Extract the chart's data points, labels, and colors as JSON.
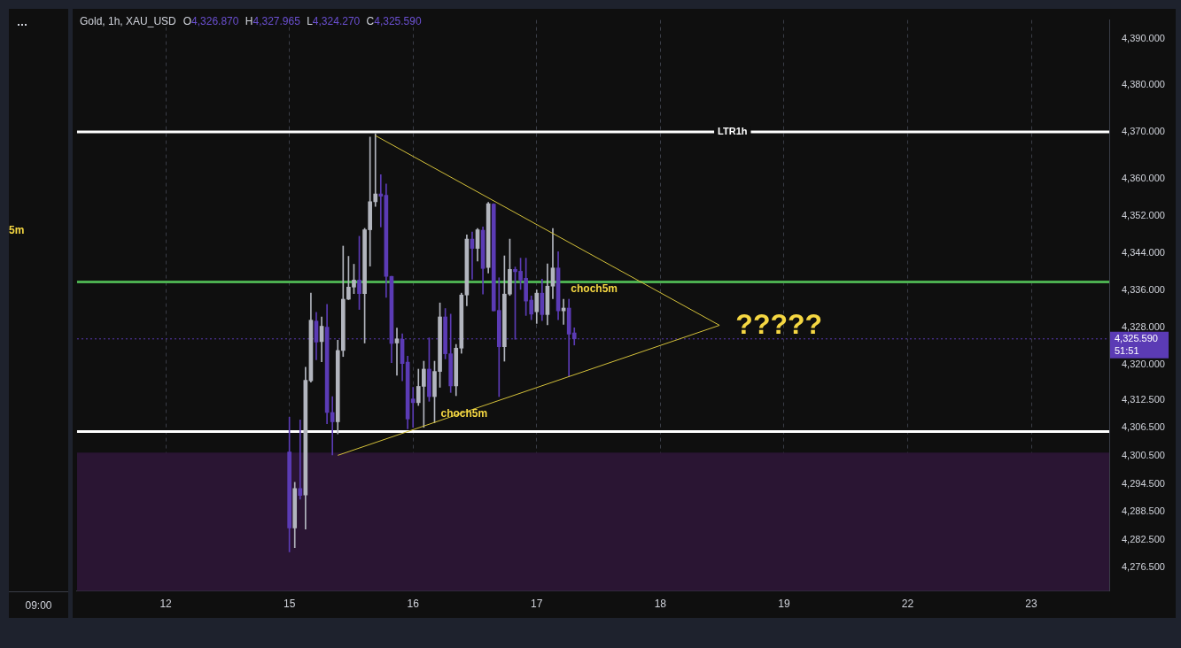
{
  "chart_data": [
    {
      "type": "other",
      "annotations": [
        "5m"
      ],
      "categories": [
        "09:00"
      ]
    },
    {
      "type": "candlestick",
      "title": "Gold, 1h, XAU_USD",
      "subtitle": "O4,326.870 H4,327.965 L4,324.270 C4,325.590",
      "categories": [
        null,
        null,
        null,
        null,
        null,
        null,
        null,
        null,
        null,
        null,
        null,
        null,
        null,
        null,
        null,
        null,
        "12",
        null,
        null,
        null,
        null,
        null,
        null,
        null,
        null,
        null,
        null,
        null,
        null,
        null,
        null,
        null,
        null,
        null,
        null,
        null,
        null,
        null,
        null,
        "15",
        null,
        null,
        null,
        null,
        null,
        null,
        null,
        null,
        null,
        null,
        null,
        null,
        null,
        null,
        null,
        null,
        null,
        null,
        null,
        null,
        null,
        null,
        "16",
        null,
        null,
        null,
        null,
        null,
        null,
        null,
        null,
        null,
        null,
        null,
        null,
        null,
        null,
        null,
        null,
        null,
        null,
        null,
        null,
        null,
        null,
        "17",
        null,
        null,
        null,
        null,
        null,
        null,
        null,
        null,
        null,
        null,
        null,
        null,
        null,
        null,
        null,
        null,
        null,
        null,
        null,
        null,
        null,
        null,
        "18",
        null,
        null,
        null,
        null,
        null,
        null,
        null,
        null,
        null,
        null,
        null,
        null,
        null,
        null,
        null,
        null,
        null,
        null,
        null,
        null,
        null,
        null,
        "19",
        null,
        null,
        null,
        null,
        null,
        null,
        null,
        null,
        null,
        null,
        null,
        null,
        null,
        null,
        null,
        null,
        null,
        null,
        null,
        null,
        null,
        null,
        "22",
        null,
        null,
        null,
        null,
        null,
        null,
        null,
        null,
        null,
        null,
        null,
        null,
        null,
        null,
        null,
        null,
        null,
        null,
        null,
        null,
        null,
        null,
        "23",
        null,
        null,
        null,
        null,
        null,
        null,
        null,
        null,
        null,
        null,
        null,
        null,
        null,
        null
      ],
      "ohlc": [
        null,
        null,
        null,
        null,
        null,
        null,
        null,
        null,
        null,
        null,
        null,
        null,
        null,
        null,
        null,
        null,
        null,
        null,
        null,
        null,
        null,
        null,
        null,
        null,
        null,
        null,
        null,
        null,
        null,
        null,
        null,
        null,
        null,
        null,
        null,
        null,
        null,
        null,
        null,
        [
          4301.3,
          4308.8,
          4279.9,
          4285.0
        ],
        [
          4285.0,
          4294.8,
          4280.8,
          4293.5
        ],
        [
          4293.5,
          4308.2,
          4291.2,
          4292.0
        ],
        [
          4292.1,
          4319.5,
          4284.8,
          4316.7
        ],
        [
          4316.6,
          4335.4,
          4316.3,
          4329.6
        ],
        [
          4329.4,
          4331.3,
          4321.1,
          4324.9
        ],
        [
          4325.0,
          4330.3,
          4320.7,
          4328.3
        ],
        [
          4328.1,
          4333.0,
          4307.4,
          4309.8
        ],
        [
          4309.8,
          4313.2,
          4300.7,
          4307.8
        ],
        [
          4307.8,
          4325.3,
          4305.2,
          4323.1
        ],
        [
          4323.1,
          4345.5,
          4321.8,
          4334.1
        ],
        [
          4334.1,
          4343.3,
          4334.0,
          4336.7
        ],
        [
          4336.7,
          4341.6,
          4335.3,
          4338.2
        ],
        [
          4338.2,
          4347.6,
          4331.9,
          4335.3
        ],
        [
          4335.3,
          4349.3,
          4324.7,
          4349.0
        ],
        [
          4349.0,
          4368.9,
          4341.2,
          4355.0
        ],
        [
          4355.0,
          4369.6,
          4354.0,
          4356.7
        ],
        [
          4356.7,
          4360.8,
          4349.6,
          4356.2
        ],
        [
          4356.4,
          4358.8,
          4334.5,
          4339.0
        ],
        [
          4339.0,
          4339.0,
          4320.5,
          4324.6
        ],
        [
          4324.7,
          4327.9,
          4317.8,
          4325.6
        ],
        [
          4325.5,
          4326.7,
          4316.6,
          4320.3
        ],
        [
          4320.6,
          4321.9,
          4306.3,
          4308.4
        ],
        [
          4312.7,
          4315.2,
          4306.6,
          4311.9
        ],
        [
          4311.9,
          4319.1,
          4311.3,
          4315.4
        ],
        [
          4315.4,
          4320.8,
          4306.6,
          4319.1
        ],
        [
          4319.1,
          4325.8,
          4312.2,
          4313.2
        ],
        [
          4313.2,
          4320.8,
          4307.6,
          4318.6
        ],
        [
          4318.6,
          4333.3,
          4315.2,
          4330.3
        ],
        [
          4330.3,
          4332.1,
          4321.3,
          4322.4
        ],
        [
          4322.4,
          4330.9,
          4314.1,
          4315.5
        ],
        [
          4315.5,
          4324.4,
          4313.4,
          4323.6
        ],
        [
          4323.6,
          4335.4,
          4322.5,
          4335.0
        ],
        [
          4335.0,
          4347.9,
          4332.7,
          4347.0
        ],
        [
          4347.0,
          4348.5,
          4338.4,
          4345.0
        ],
        [
          4345.0,
          4349.3,
          4342.3,
          4349.0
        ],
        [
          4348.9,
          4349.6,
          4335.2,
          4340.7
        ],
        [
          4340.9,
          4354.9,
          4339.7,
          4354.6
        ],
        [
          4354.5,
          4354.6,
          4331.6,
          4331.6
        ],
        [
          4331.7,
          4338.7,
          4313.2,
          4323.9
        ],
        [
          4323.9,
          4343.4,
          4320.8,
          4335.2
        ],
        [
          4335.2,
          4347.0,
          4334.9,
          4340.5
        ],
        [
          4340.5,
          4341.0,
          4325.5,
          4340.0
        ],
        [
          4340.1,
          4342.9,
          4336.2,
          4338.2
        ],
        [
          4338.6,
          4342.9,
          4330.6,
          4333.7
        ],
        [
          4333.9,
          4334.8,
          4329.7,
          4330.9
        ],
        [
          4331.4,
          4336.1,
          4328.9,
          4335.4
        ],
        [
          4335.4,
          4338.4,
          4329.5,
          4330.8
        ],
        [
          4330.8,
          4341.7,
          4328.6,
          4336.9
        ],
        [
          4336.9,
          4349.3,
          4334.2,
          4340.8
        ],
        [
          4340.8,
          4344.3,
          4329.7,
          4331.6
        ],
        [
          4331.6,
          4334.1,
          4328.7,
          4332.2
        ],
        [
          4332.2,
          4334.1,
          4317.5,
          4326.6
        ],
        [
          4326.87,
          4327.965,
          4324.27,
          4325.59
        ],
        null,
        null,
        null,
        null,
        null,
        null,
        null,
        null,
        null,
        null,
        null,
        null,
        null,
        null,
        null,
        null,
        null,
        null,
        null,
        null,
        null,
        null,
        null,
        null,
        null,
        null,
        null,
        null,
        null,
        null,
        null,
        null,
        null,
        null,
        null,
        null,
        null,
        null,
        null,
        null,
        null,
        null,
        null,
        null,
        null,
        null,
        null,
        null,
        null,
        null,
        null,
        null,
        null,
        null,
        null,
        null,
        null,
        null,
        null,
        null,
        null,
        null,
        null,
        null,
        null,
        null,
        null,
        null,
        null,
        null,
        null,
        null,
        null,
        null,
        null,
        null,
        null,
        null,
        null,
        null,
        null,
        null,
        null,
        null,
        null,
        null,
        null,
        null,
        null,
        null,
        null,
        null,
        null,
        null,
        null,
        null,
        null,
        null,
        null
      ],
      "colors": [
        null,
        null,
        null,
        null,
        null,
        null,
        null,
        null,
        null,
        null,
        null,
        null,
        null,
        null,
        null,
        null,
        null,
        null,
        null,
        null,
        null,
        null,
        null,
        null,
        null,
        null,
        null,
        null,
        null,
        null,
        null,
        null,
        null,
        null,
        null,
        null,
        null,
        null,
        null,
        "#5b3bb5",
        "#b2b5be",
        "#5b3bb5",
        "#b2b5be",
        "#b2b5be",
        "#5b3bb5",
        "#b2b5be",
        "#5b3bb5",
        "#5b3bb5",
        "#b2b5be",
        "#b2b5be",
        "#b2b5be",
        "#b2b5be",
        "#5b3bb5",
        "#b2b5be",
        "#b2b5be",
        "#b2b5be",
        "#5b3bb5",
        "#5b3bb5",
        "#5b3bb5",
        "#b2b5be",
        "#5b3bb5",
        "#5b3bb5",
        "#5b3bb5",
        "#b2b5be",
        "#b2b5be",
        "#5b3bb5",
        "#b2b5be",
        "#b2b5be",
        "#5b3bb5",
        "#5b3bb5",
        "#b2b5be",
        "#b2b5be",
        "#b2b5be",
        "#5b3bb5",
        "#b2b5be",
        "#5b3bb5",
        "#b2b5be",
        "#5b3bb5",
        "#5b3bb5",
        "#b2b5be",
        "#b2b5be",
        "#5b3bb5",
        "#5b3bb5",
        "#5b3bb5",
        "#5b3bb5",
        "#b2b5be",
        "#5b3bb5",
        "#b2b5be",
        "#b2b5be",
        "#5b3bb5",
        "#b2b5be",
        "#5b3bb5",
        "#5b3bb5",
        null,
        null,
        null,
        null,
        null,
        null,
        null,
        null,
        null,
        null,
        null,
        null,
        null,
        null,
        null,
        null,
        null,
        null,
        null,
        null,
        null,
        null,
        null,
        null,
        null,
        null,
        null,
        null,
        null,
        null,
        null,
        null,
        null,
        null,
        null,
        null,
        null,
        null,
        null,
        null,
        null,
        null,
        null,
        null,
        null,
        null,
        null,
        null,
        null,
        null,
        null,
        null,
        null,
        null,
        null,
        null,
        null,
        null,
        null,
        null,
        null,
        null,
        null,
        null,
        null,
        null,
        null,
        null,
        null,
        null,
        null,
        null,
        null,
        null,
        null,
        null,
        null,
        null,
        null,
        null,
        null,
        null,
        null,
        null,
        null,
        null,
        null,
        null,
        null,
        null,
        null,
        null,
        null,
        null,
        null,
        null,
        null,
        null,
        null
      ],
      "series": [
        {
          "type": "line",
          "color": "#d4c13a",
          "values": [
            null,
            null,
            null,
            null,
            null,
            null,
            null,
            null,
            null,
            null,
            null,
            null,
            null,
            null,
            null,
            null,
            null,
            null,
            null,
            null,
            null,
            null,
            null,
            null,
            null,
            null,
            null,
            null,
            null,
            null,
            null,
            null,
            null,
            null,
            null,
            null,
            null,
            null,
            null,
            null,
            null,
            null,
            null,
            null,
            null,
            null,
            null,
            null,
            null,
            null,
            null,
            null,
            null,
            null,
            null,
            4369.2,
            null,
            null,
            null,
            null,
            null,
            null,
            null,
            null,
            null,
            null,
            null,
            null,
            null,
            null,
            null,
            null,
            null,
            null,
            null,
            null,
            null,
            null,
            null,
            null,
            null,
            null,
            null,
            null,
            null,
            null,
            null,
            null,
            null,
            null,
            null,
            null,
            null,
            null,
            null,
            null,
            null,
            null,
            null,
            null,
            null,
            null,
            null,
            null,
            null,
            null,
            null,
            null,
            null,
            null,
            null,
            null,
            null,
            null,
            null,
            null,
            null,
            null,
            null,
            4328.5,
            null,
            null,
            null,
            null,
            null,
            null,
            null,
            null,
            null,
            null,
            null,
            null,
            null,
            null,
            null,
            null,
            null,
            null,
            null,
            null,
            null,
            null,
            null,
            null,
            null,
            null,
            null,
            null,
            null,
            null,
            null,
            null,
            null,
            null,
            null,
            null,
            null,
            null,
            null,
            null,
            null,
            null,
            null,
            null,
            null,
            null,
            null,
            null,
            null,
            null,
            null,
            null,
            null,
            null,
            null,
            null,
            null,
            null,
            null,
            null,
            null,
            null,
            null,
            null,
            null,
            null,
            null,
            null,
            null,
            null,
            null,
            null
          ]
        },
        {
          "type": "line",
          "color": "#d4c13a",
          "values": [
            null,
            null,
            null,
            null,
            null,
            null,
            null,
            null,
            null,
            null,
            null,
            null,
            null,
            null,
            null,
            null,
            null,
            null,
            null,
            null,
            null,
            null,
            null,
            null,
            null,
            null,
            null,
            null,
            null,
            null,
            null,
            null,
            null,
            null,
            null,
            null,
            null,
            null,
            null,
            null,
            null,
            null,
            null,
            null,
            null,
            null,
            null,
            null,
            4300.6,
            null,
            null,
            null,
            null,
            null,
            null,
            null,
            null,
            null,
            null,
            null,
            null,
            null,
            null,
            null,
            null,
            null,
            null,
            null,
            null,
            null,
            null,
            null,
            null,
            null,
            null,
            null,
            null,
            null,
            null,
            null,
            null,
            null,
            null,
            null,
            null,
            null,
            null,
            null,
            null,
            null,
            null,
            null,
            null,
            null,
            null,
            null,
            null,
            null,
            null,
            null,
            null,
            null,
            null,
            null,
            null,
            null,
            null,
            null,
            null,
            null,
            null,
            null,
            null,
            null,
            null,
            null,
            null,
            null,
            null,
            4328.5,
            null,
            null,
            null,
            null,
            null,
            null,
            null,
            null,
            null,
            null,
            null,
            null,
            null,
            null,
            null,
            null,
            null,
            null,
            null,
            null,
            null,
            null,
            null,
            null,
            null,
            null,
            null,
            null,
            null,
            null,
            null,
            null,
            null,
            null,
            null,
            null,
            null,
            null,
            null,
            null,
            null,
            null,
            null,
            null,
            null,
            null,
            null,
            null,
            null,
            null,
            null,
            null,
            null,
            null,
            null,
            null,
            null,
            null,
            null,
            null,
            null,
            null,
            null,
            null,
            null,
            null,
            null,
            null,
            null,
            null,
            null,
            null
          ]
        }
      ],
      "ylim": [
        4271.5,
        4394
      ],
      "yticks": [
        {
          "value": 4390,
          "label": "4,390.000"
        },
        {
          "value": 4380,
          "label": "4,380.000"
        },
        {
          "value": 4370,
          "label": "4,370.000"
        },
        {
          "value": 4360,
          "label": "4,360.000"
        },
        {
          "value": 4352,
          "label": "4,352.000"
        },
        {
          "value": 4344,
          "label": "4,344.000"
        },
        {
          "value": 4336,
          "label": "4,336.000"
        },
        {
          "value": 4328,
          "label": "4,328.000"
        },
        {
          "value": 4320,
          "label": "4,320.000"
        },
        {
          "value": 4312.5,
          "label": "4,312.500"
        },
        {
          "value": 4306.5,
          "label": "4,306.500"
        },
        {
          "value": 4300.5,
          "label": "4,300.500"
        },
        {
          "value": 4294.5,
          "label": "4,294.500"
        },
        {
          "value": 4288.5,
          "label": "4,288.500"
        },
        {
          "value": 4282.5,
          "label": "4,282.500"
        },
        {
          "value": 4276.5,
          "label": "4,276.500"
        }
      ],
      "ref_lines": [
        {
          "axis": "y",
          "value": 4370,
          "label": "LTR1h",
          "color": "#ffffff"
        },
        {
          "axis": "y",
          "value": 4337.8,
          "color": "#4caf50"
        },
        {
          "axis": "y",
          "value": 4305.7,
          "color": "#ffffff"
        },
        {
          "axis": "y",
          "value": 4325.59,
          "label": "4,325.590\n51:51",
          "color": "#5b3bb5",
          "line_style": "dotted"
        }
      ],
      "bands": [
        {
          "axis": "y",
          "from": 4271.5,
          "to": 4301.2,
          "color": "#2a1533"
        }
      ],
      "annotations": [
        "choch5m",
        "choch5m",
        "?????"
      ],
      "grid": "x",
      "legend": false
    }
  ]
}
